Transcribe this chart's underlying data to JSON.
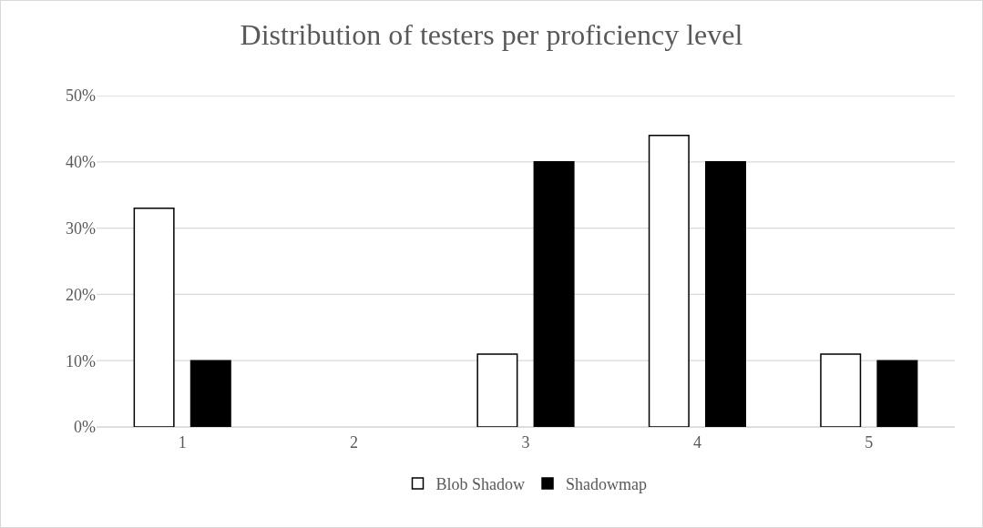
{
  "chart_data": {
    "type": "bar",
    "title": "Distribution of testers per proficiency level",
    "categories": [
      "1",
      "2",
      "3",
      "4",
      "5"
    ],
    "series": [
      {
        "name": "Blob Shadow",
        "color": "#ffffff",
        "values": [
          33,
          0,
          11,
          44,
          11
        ]
      },
      {
        "name": "Shadowmap",
        "color": "#000000",
        "values": [
          10,
          0,
          40,
          40,
          10
        ]
      }
    ],
    "ylim": [
      0,
      50
    ],
    "yticks": [
      {
        "value": 0,
        "label": "0%"
      },
      {
        "value": 10,
        "label": "10%"
      },
      {
        "value": 20,
        "label": "20%"
      },
      {
        "value": 30,
        "label": "30%"
      },
      {
        "value": 40,
        "label": "40%"
      },
      {
        "value": 50,
        "label": "50%"
      }
    ],
    "grid": "y",
    "legend": "bottom"
  }
}
